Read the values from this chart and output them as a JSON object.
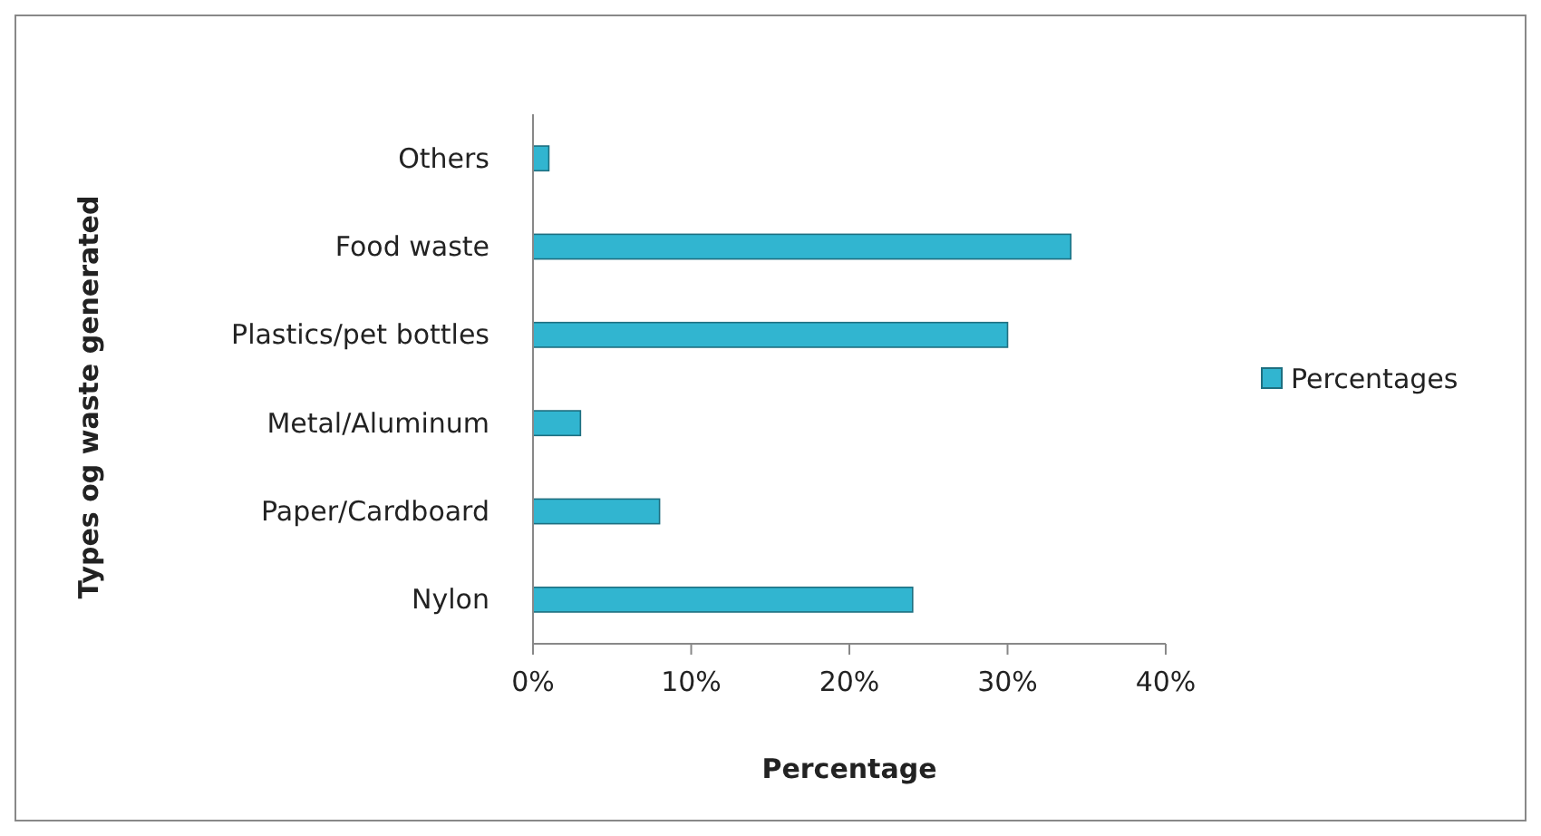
{
  "chart_data": {
    "type": "bar",
    "orientation": "horizontal",
    "xlabel": "Percentage",
    "ylabel": "Types og waste generated",
    "categories": [
      "Others",
      "Food waste",
      "Plastics/pet bottles",
      "Metal/Aluminum",
      "Paper/Cardboard",
      "Nylon"
    ],
    "series": [
      {
        "name": "Percentages",
        "color": "#31b5d0",
        "values": [
          1,
          34,
          30,
          3,
          8,
          24
        ]
      }
    ],
    "xlim": [
      0,
      40
    ],
    "xticks": [
      {
        "value": 0,
        "label": "0%"
      },
      {
        "value": 10,
        "label": "10%"
      },
      {
        "value": 20,
        "label": "20%"
      },
      {
        "value": 30,
        "label": "30%"
      },
      {
        "value": 40,
        "label": "40%"
      }
    ],
    "grid": false,
    "legend": "right"
  }
}
